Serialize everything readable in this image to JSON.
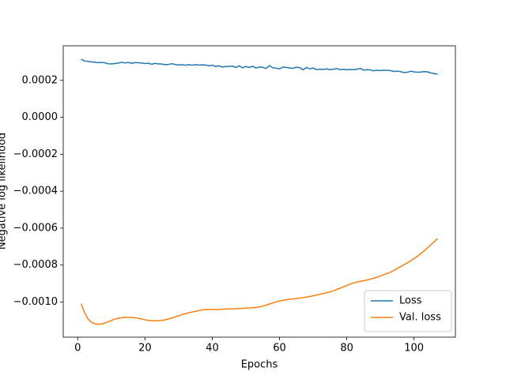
{
  "chart_data": {
    "type": "line",
    "xlabel": "Epochs",
    "ylabel": "Negative log likelihood",
    "x": [
      1,
      2,
      3,
      4,
      5,
      6,
      7,
      8,
      9,
      10,
      11,
      12,
      13,
      14,
      15,
      16,
      17,
      18,
      19,
      20,
      21,
      22,
      23,
      24,
      25,
      26,
      27,
      28,
      29,
      30,
      31,
      32,
      33,
      34,
      35,
      36,
      37,
      38,
      39,
      40,
      41,
      42,
      43,
      44,
      45,
      46,
      47,
      48,
      49,
      50,
      51,
      52,
      53,
      54,
      55,
      56,
      57,
      58,
      59,
      60,
      61,
      62,
      63,
      64,
      65,
      66,
      67,
      68,
      69,
      70,
      71,
      72,
      73,
      74,
      75,
      76,
      77,
      78,
      79,
      80,
      81,
      82,
      83,
      84,
      85,
      86,
      87,
      88,
      89,
      90,
      91,
      92,
      93,
      94,
      95,
      96,
      97,
      98,
      99,
      100,
      101,
      102,
      103,
      104,
      105,
      106,
      107
    ],
    "series": [
      {
        "name": "Loss",
        "color": "#1f77b4",
        "values": [
          0.000315,
          0.000305,
          0.000303,
          0.0003,
          0.000298,
          0.000296,
          0.000297,
          0.000295,
          0.00029,
          0.000289,
          0.000291,
          0.000293,
          0.000298,
          0.000294,
          0.000297,
          0.000292,
          0.000296,
          0.000295,
          0.000294,
          0.000291,
          0.000293,
          0.000287,
          0.000292,
          0.000289,
          0.000288,
          0.000285,
          0.000286,
          0.00029,
          0.000286,
          0.000283,
          0.000285,
          0.000282,
          0.000285,
          0.000282,
          0.000285,
          0.000283,
          0.000284,
          0.000283,
          0.000279,
          0.000282,
          0.000275,
          0.000279,
          0.000272,
          0.000275,
          0.000276,
          0.000277,
          0.00027,
          0.000279,
          0.000268,
          0.000275,
          0.00027,
          0.000276,
          0.000267,
          0.000272,
          0.000271,
          0.000264,
          0.00028,
          0.000268,
          0.000266,
          0.000262,
          0.000272,
          0.00027,
          0.000267,
          0.000265,
          0.000271,
          0.000269,
          0.000257,
          0.00027,
          0.000262,
          0.000267,
          0.000258,
          0.000261,
          0.000259,
          0.000262,
          0.000258,
          0.00026,
          0.000264,
          0.000258,
          0.00026,
          0.000257,
          0.000259,
          0.000258,
          0.00026,
          0.000265,
          0.000255,
          0.000258,
          0.000256,
          0.000252,
          0.000255,
          0.000253,
          0.000255,
          0.000254,
          0.000253,
          0.000248,
          0.00025,
          0.000247,
          0.000242,
          0.000244,
          0.000249,
          0.000246,
          0.000244,
          0.000245,
          0.000247,
          0.000246,
          0.00024,
          0.000237,
          0.000233
        ]
      },
      {
        "name": "Val. loss",
        "color": "#ff7f0e",
        "values": [
          -0.00101,
          -0.001055,
          -0.00109,
          -0.001108,
          -0.001117,
          -0.00112,
          -0.001119,
          -0.001114,
          -0.001107,
          -0.0011,
          -0.001093,
          -0.001088,
          -0.001085,
          -0.001083,
          -0.001083,
          -0.001083,
          -0.001085,
          -0.001088,
          -0.001092,
          -0.001096,
          -0.001099,
          -0.001101,
          -0.001102,
          -0.001101,
          -0.001099,
          -0.001096,
          -0.001091,
          -0.001086,
          -0.00108,
          -0.001074,
          -0.001068,
          -0.001063,
          -0.001058,
          -0.001054,
          -0.00105,
          -0.001046,
          -0.001043,
          -0.001041,
          -0.00104,
          -0.00104,
          -0.00104,
          -0.00104,
          -0.001039,
          -0.001038,
          -0.001037,
          -0.001037,
          -0.001036,
          -0.001035,
          -0.001034,
          -0.001033,
          -0.001032,
          -0.001031,
          -0.001029,
          -0.001026,
          -0.001022,
          -0.001017,
          -0.001011,
          -0.001005,
          -0.000999,
          -0.000994,
          -0.00099,
          -0.000988,
          -0.000985,
          -0.000983,
          -0.000981,
          -0.000979,
          -0.000976,
          -0.000973,
          -0.00097,
          -0.000966,
          -0.000962,
          -0.000958,
          -0.000954,
          -0.00095,
          -0.000945,
          -0.000939,
          -0.000932,
          -0.000925,
          -0.000918,
          -0.00091,
          -0.000903,
          -0.000897,
          -0.000892,
          -0.000888,
          -0.000885,
          -0.000881,
          -0.000876,
          -0.000871,
          -0.000865,
          -0.000859,
          -0.000852,
          -0.000845,
          -0.000838,
          -0.000829,
          -0.000818,
          -0.000808,
          -0.000798,
          -0.000788,
          -0.000777,
          -0.000765,
          -0.000752,
          -0.000738,
          -0.000723,
          -0.000707,
          -0.00069,
          -0.000673,
          -0.000656
        ]
      }
    ],
    "xlim": [
      -4.3,
      112.3
    ],
    "xticks": [
      0,
      20,
      40,
      60,
      80,
      100
    ],
    "ylim": [
      -0.00119,
      0.000387
    ],
    "yticks": [
      0.0002,
      {
        "value": 0,
        "label": "0.0000"
      },
      {
        "value": -0.0002,
        "label": "−0.0002"
      },
      {
        "value": -0.0004,
        "label": "−0.0004"
      },
      {
        "value": -0.0006,
        "label": "−0.0006"
      },
      {
        "value": -0.0008,
        "label": "−0.0008"
      },
      {
        "value": -0.001,
        "label": "−0.0010"
      }
    ],
    "legend": "lower right",
    "grid": false
  }
}
